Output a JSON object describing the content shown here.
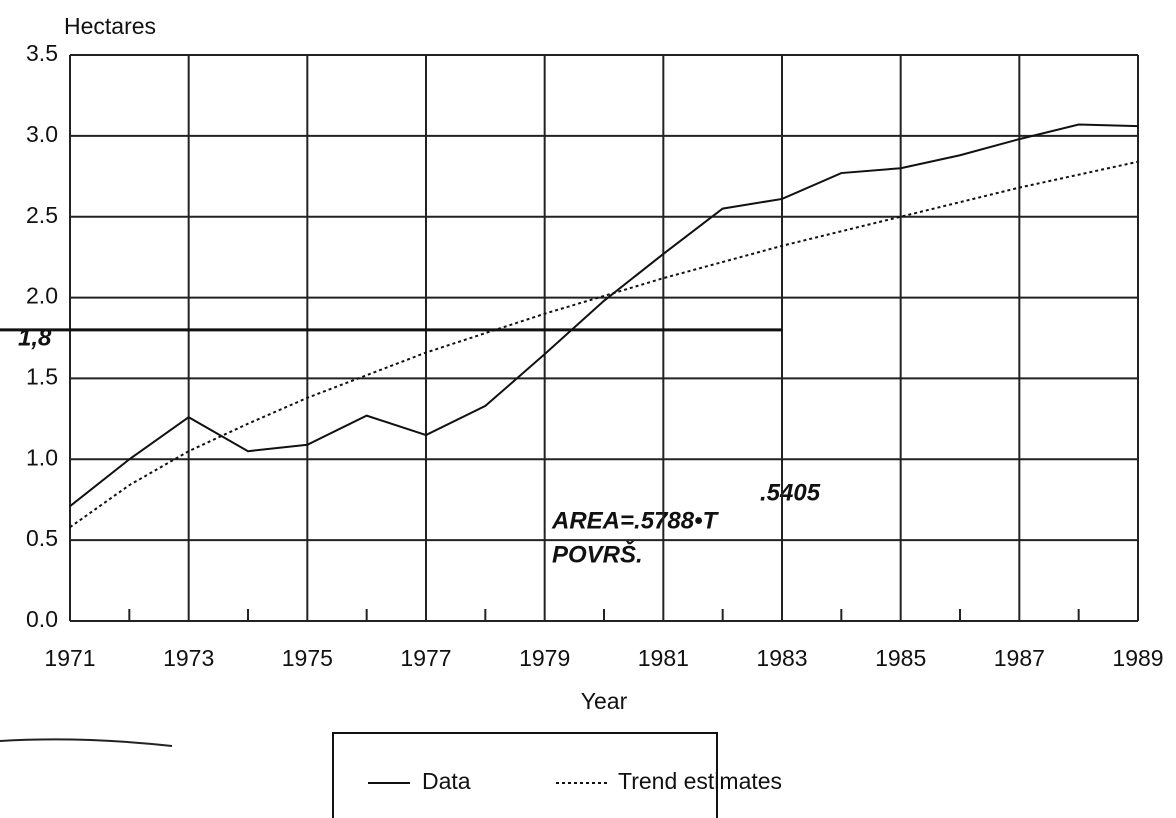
{
  "chart_data": {
    "type": "line",
    "y_axis_label": "Hectares",
    "x_axis_label": "Year",
    "x": [
      1971,
      1972,
      1973,
      1974,
      1975,
      1976,
      1977,
      1978,
      1979,
      1980,
      1981,
      1982,
      1983,
      1984,
      1985,
      1986,
      1987,
      1988,
      1989
    ],
    "series": [
      {
        "name": "Data",
        "color": "#111111",
        "style": "solid",
        "values": [
          0.71,
          1.0,
          1.26,
          1.05,
          1.09,
          1.27,
          1.15,
          1.33,
          1.65,
          1.98,
          2.27,
          2.55,
          2.61,
          2.77,
          2.8,
          2.88,
          2.98,
          3.07,
          3.06
        ]
      },
      {
        "name": "Trend estimates",
        "color": "#111111",
        "style": "dotted",
        "values": [
          0.58,
          0.84,
          1.05,
          1.22,
          1.38,
          1.52,
          1.66,
          1.78,
          1.9,
          2.01,
          2.12,
          2.22,
          2.32,
          2.41,
          2.5,
          2.59,
          2.68,
          2.76,
          2.84
        ]
      }
    ],
    "xlim": [
      1971,
      1989
    ],
    "xticks": [
      1971,
      1973,
      1975,
      1977,
      1979,
      1981,
      1983,
      1985,
      1987,
      1989
    ],
    "xminorticks": [
      1972,
      1974,
      1976,
      1978,
      1980,
      1982,
      1984,
      1986,
      1988
    ],
    "ylim": [
      0,
      3.5
    ],
    "yticks": [
      {
        "value": 0,
        "label": "0.0"
      },
      0.5,
      {
        "value": 1,
        "label": "1.0"
      },
      1.5,
      {
        "value": 2,
        "label": "2.0"
      },
      2.5,
      {
        "value": 3,
        "label": "3.0"
      },
      3.5
    ],
    "grid": true,
    "reference_line": {
      "value": 1.8,
      "label": "1,8",
      "xrange": [
        1971,
        1983
      ]
    },
    "annotation": {
      "formula": "AREA=.5788•T",
      "exponent": ".5405",
      "note": "POVRŠ."
    },
    "legend": "bottom"
  }
}
